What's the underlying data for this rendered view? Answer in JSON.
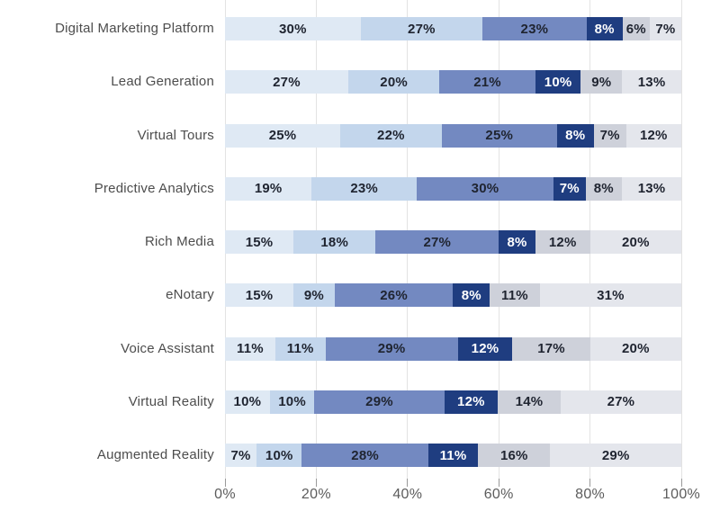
{
  "chart_data": {
    "type": "bar",
    "orientation": "horizontal",
    "stacked": true,
    "title": "",
    "xlabel": "",
    "ylabel": "",
    "unit": "%",
    "xlim": [
      0,
      100
    ],
    "x_ticks": [
      "0%",
      "20%",
      "40%",
      "60%",
      "80%",
      "100%"
    ],
    "grid": "vertical",
    "legend": "none",
    "data_label_format": "{value}%",
    "rows": [
      {
        "label": "Digital Marketing Platform",
        "values": [
          30,
          27,
          23,
          8,
          6,
          7
        ]
      },
      {
        "label": "Lead Generation",
        "values": [
          27,
          20,
          21,
          10,
          9,
          13
        ]
      },
      {
        "label": "Virtual Tours",
        "values": [
          25,
          22,
          25,
          8,
          7,
          12
        ]
      },
      {
        "label": "Predictive Analytics",
        "values": [
          19,
          23,
          30,
          7,
          8,
          13
        ]
      },
      {
        "label": "Rich Media",
        "values": [
          15,
          18,
          27,
          8,
          12,
          20
        ]
      },
      {
        "label": "eNotary",
        "values": [
          15,
          9,
          26,
          8,
          11,
          31
        ]
      },
      {
        "label": "Voice Assistant",
        "values": [
          11,
          11,
          29,
          12,
          17,
          20
        ]
      },
      {
        "label": "Virtual Reality",
        "values": [
          10,
          10,
          29,
          12,
          14,
          27
        ]
      },
      {
        "label": "Augmented Reality",
        "values": [
          7,
          10,
          28,
          11,
          16,
          29
        ]
      }
    ],
    "segment_colors": [
      "#dfe9f4",
      "#c3d6ec",
      "#7389c1",
      "#1f3d80",
      "#ced1da",
      "#e4e6ec"
    ],
    "segment_label_colors": [
      "#1f2430",
      "#1f2430",
      "#1f2430",
      "#ffffff",
      "#1f2430",
      "#1f2430"
    ],
    "gridline_color": "#e3e3e3",
    "tick_color": "#9a9a9a",
    "row_label_color": "#4d4d4d",
    "axis_label_color": "#5c5c5c"
  }
}
